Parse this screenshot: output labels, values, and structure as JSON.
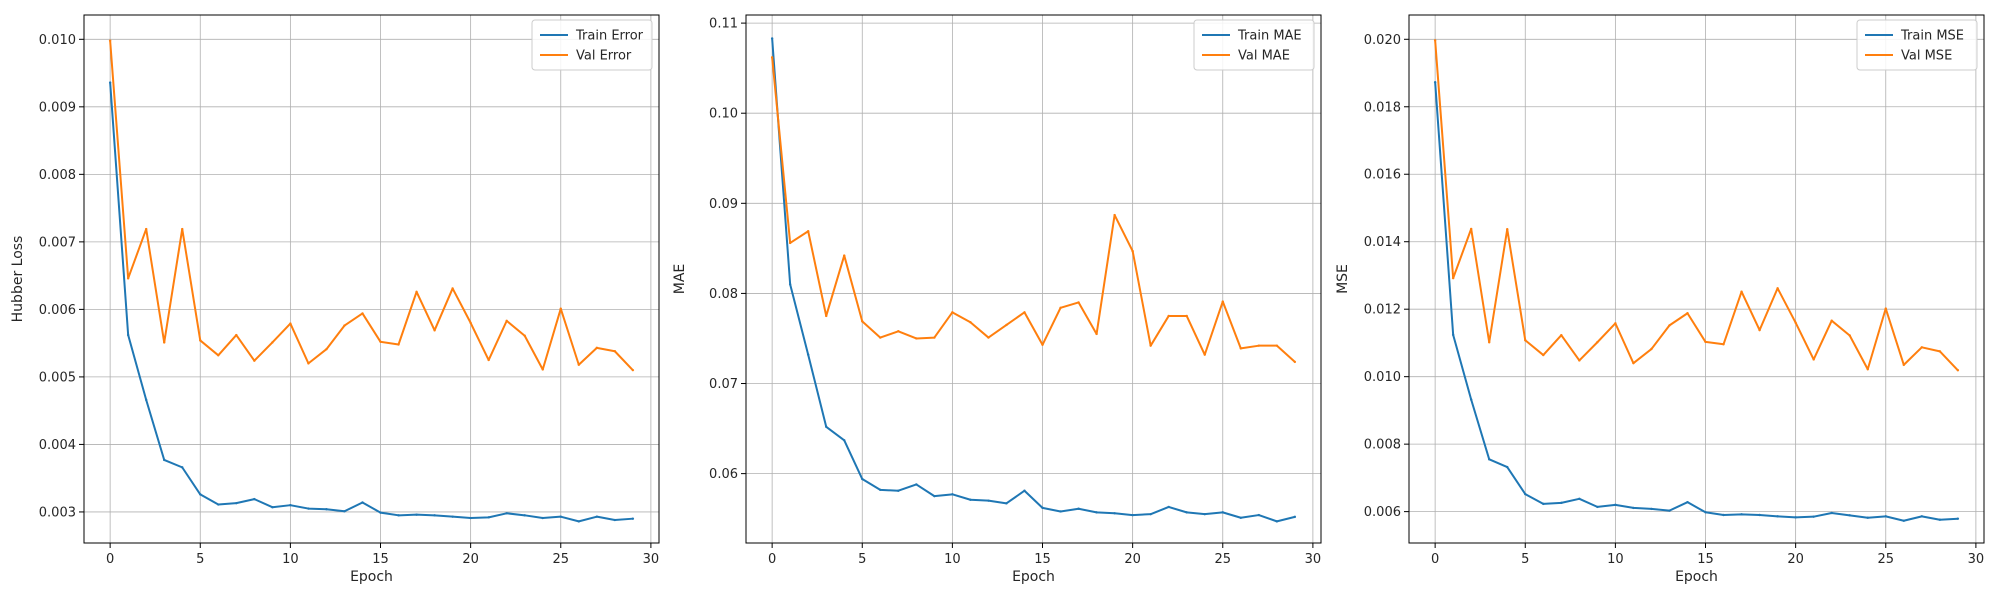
{
  "chart_data": [
    {
      "type": "line",
      "xlabel": "Epoch",
      "ylabel": "Hubber Loss",
      "xlim": [
        -1.45,
        30.45
      ],
      "ylim": [
        0.00254,
        0.01036
      ],
      "xticks": [
        0,
        5,
        10,
        15,
        20,
        25,
        30
      ],
      "yticks": [
        0.003,
        0.004,
        0.005,
        0.006,
        0.007,
        0.008,
        0.009,
        0.01
      ],
      "ytick_labels": [
        "0.003",
        "0.004",
        "0.005",
        "0.006",
        "0.007",
        "0.008",
        "0.009",
        "0.010"
      ],
      "grid": true,
      "legend_position": "top-right",
      "x": [
        0,
        1,
        2,
        3,
        4,
        5,
        6,
        7,
        8,
        9,
        10,
        11,
        12,
        13,
        14,
        15,
        16,
        17,
        18,
        19,
        20,
        21,
        22,
        23,
        24,
        25,
        26,
        27,
        28,
        29
      ],
      "series": [
        {
          "name": "Train Error",
          "color": "#1f77b4",
          "values": [
            0.00936,
            0.00562,
            0.00466,
            0.00377,
            0.00366,
            0.00326,
            0.00311,
            0.00313,
            0.00319,
            0.00307,
            0.0031,
            0.00305,
            0.00304,
            0.00301,
            0.00314,
            0.00299,
            0.00295,
            0.00296,
            0.00295,
            0.00293,
            0.00291,
            0.00292,
            0.00298,
            0.00295,
            0.00291,
            0.00293,
            0.00286,
            0.00293,
            0.00288,
            0.0029
          ]
        },
        {
          "name": "Val Error",
          "color": "#ff7f0e",
          "values": [
            0.00998,
            0.00646,
            0.00719,
            0.00551,
            0.00719,
            0.00554,
            0.00532,
            0.00562,
            0.00524,
            0.00551,
            0.00579,
            0.0052,
            0.00541,
            0.00576,
            0.00594,
            0.00552,
            0.00548,
            0.00626,
            0.00569,
            0.00631,
            0.0058,
            0.00525,
            0.00583,
            0.00561,
            0.00511,
            0.00601,
            0.00518,
            0.00543,
            0.00538,
            0.0051
          ]
        }
      ]
    },
    {
      "type": "line",
      "xlabel": "Epoch",
      "ylabel": "MAE",
      "xlim": [
        -1.45,
        30.45
      ],
      "ylim": [
        0.0523,
        0.1109
      ],
      "xticks": [
        0,
        5,
        10,
        15,
        20,
        25,
        30
      ],
      "yticks": [
        0.06,
        0.07,
        0.08,
        0.09,
        0.1,
        0.11
      ],
      "ytick_labels": [
        "0.06",
        "0.07",
        "0.08",
        "0.09",
        "0.10",
        "0.11"
      ],
      "grid": true,
      "legend_position": "top-right",
      "x": [
        0,
        1,
        2,
        3,
        4,
        5,
        6,
        7,
        8,
        9,
        10,
        11,
        12,
        13,
        14,
        15,
        16,
        17,
        18,
        19,
        20,
        21,
        22,
        23,
        24,
        25,
        26,
        27,
        28,
        29
      ],
      "series": [
        {
          "name": "Train MAE",
          "color": "#1f77b4",
          "values": [
            0.1083,
            0.081,
            0.0732,
            0.0652,
            0.0637,
            0.0594,
            0.0582,
            0.0581,
            0.0588,
            0.0575,
            0.0577,
            0.0571,
            0.057,
            0.0567,
            0.0581,
            0.0562,
            0.0558,
            0.0561,
            0.0557,
            0.0556,
            0.0554,
            0.0555,
            0.0563,
            0.0557,
            0.0555,
            0.0557,
            0.0551,
            0.0554,
            0.0547,
            0.0552
          ]
        },
        {
          "name": "Val MAE",
          "color": "#ff7f0e",
          "values": [
            0.1062,
            0.0856,
            0.0869,
            0.0775,
            0.0842,
            0.0769,
            0.0751,
            0.0758,
            0.075,
            0.0751,
            0.0779,
            0.0768,
            0.0751,
            0.0765,
            0.0779,
            0.0743,
            0.0784,
            0.079,
            0.0755,
            0.0887,
            0.0847,
            0.0742,
            0.0775,
            0.0775,
            0.0732,
            0.0791,
            0.0739,
            0.0742,
            0.0742,
            0.0724
          ]
        }
      ]
    },
    {
      "type": "line",
      "xlabel": "Epoch",
      "ylabel": "MSE",
      "xlim": [
        -1.45,
        30.45
      ],
      "ylim": [
        0.00507,
        0.02072
      ],
      "xticks": [
        0,
        5,
        10,
        15,
        20,
        25,
        30
      ],
      "yticks": [
        0.006,
        0.008,
        0.01,
        0.012,
        0.014,
        0.016,
        0.018,
        0.02
      ],
      "ytick_labels": [
        "0.006",
        "0.008",
        "0.010",
        "0.012",
        "0.014",
        "0.016",
        "0.018",
        "0.020"
      ],
      "grid": true,
      "legend_position": "top-right",
      "x": [
        0,
        1,
        2,
        3,
        4,
        5,
        6,
        7,
        8,
        9,
        10,
        11,
        12,
        13,
        14,
        15,
        16,
        17,
        18,
        19,
        20,
        21,
        22,
        23,
        24,
        25,
        26,
        27,
        28,
        29
      ],
      "series": [
        {
          "name": "Train MSE",
          "color": "#1f77b4",
          "values": [
            0.01873,
            0.01124,
            0.00932,
            0.00755,
            0.00732,
            0.00652,
            0.00623,
            0.00626,
            0.00638,
            0.00614,
            0.0062,
            0.00611,
            0.00608,
            0.00603,
            0.00628,
            0.00598,
            0.0059,
            0.00592,
            0.0059,
            0.00586,
            0.00583,
            0.00585,
            0.00596,
            0.00589,
            0.00582,
            0.00586,
            0.00573,
            0.00586,
            0.00576,
            0.00579
          ]
        },
        {
          "name": "Val MSE",
          "color": "#ff7f0e",
          "values": [
            0.01997,
            0.01292,
            0.01438,
            0.01102,
            0.01437,
            0.01108,
            0.01064,
            0.01123,
            0.01048,
            0.01102,
            0.01158,
            0.0104,
            0.01082,
            0.01152,
            0.01188,
            0.01103,
            0.01096,
            0.01252,
            0.01138,
            0.01262,
            0.0116,
            0.01051,
            0.01166,
            0.01122,
            0.01022,
            0.01202,
            0.01035,
            0.01087,
            0.01075,
            0.01019
          ]
        }
      ]
    }
  ]
}
